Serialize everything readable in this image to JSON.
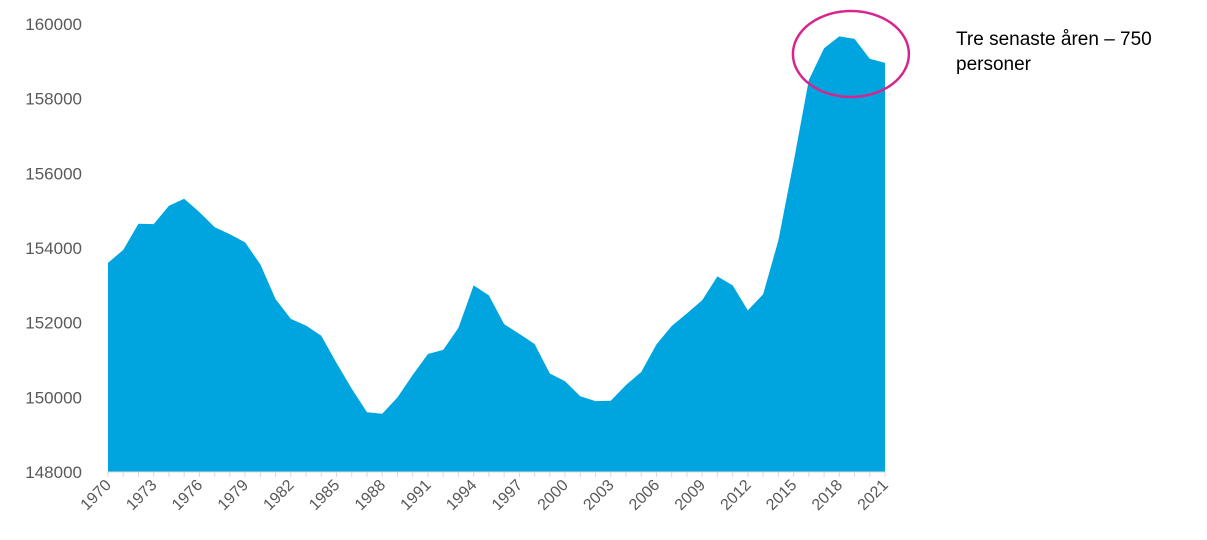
{
  "chart_data": {
    "type": "area",
    "x": [
      1970,
      1971,
      1972,
      1973,
      1974,
      1975,
      1976,
      1977,
      1978,
      1979,
      1980,
      1981,
      1982,
      1983,
      1984,
      1985,
      1986,
      1987,
      1988,
      1989,
      1990,
      1991,
      1992,
      1993,
      1994,
      1995,
      1996,
      1997,
      1998,
      1999,
      2000,
      2001,
      2002,
      2003,
      2004,
      2005,
      2006,
      2007,
      2008,
      2009,
      2010,
      2011,
      2012,
      2013,
      2014,
      2015,
      2016,
      2017,
      2018,
      2019,
      2020,
      2021
    ],
    "values": [
      153600,
      153950,
      154650,
      154640,
      155130,
      155320,
      154960,
      154560,
      154370,
      154150,
      153560,
      152630,
      152100,
      151920,
      151650,
      150920,
      150230,
      149600,
      149560,
      150000,
      150600,
      151160,
      151270,
      151860,
      153000,
      152730,
      151960,
      151700,
      151430,
      150640,
      150430,
      150030,
      149900,
      149910,
      150330,
      150680,
      151420,
      151910,
      152250,
      152600,
      153240,
      153000,
      152330,
      152760,
      154200,
      156300,
      158500,
      159350,
      159670,
      159600,
      159070,
      158960
    ],
    "xticks": [
      "1970",
      "1973",
      "1976",
      "1979",
      "1982",
      "1985",
      "1988",
      "1991",
      "1994",
      "1997",
      "2000",
      "2003",
      "2006",
      "2009",
      "2012",
      "2015",
      "2018",
      "2021"
    ],
    "yticks": [
      "148000",
      "150000",
      "152000",
      "154000",
      "156000",
      "158000",
      "160000"
    ],
    "ylim": [
      148000,
      160000
    ],
    "xlim": [
      1970,
      2021
    ],
    "grid": false,
    "legend": "none",
    "title": "",
    "xlabel": "",
    "ylabel": "",
    "annotation": {
      "text_line1": "Tre senaste åren – 750",
      "text_line2": "personer",
      "highlight_from": 2016,
      "highlight_to": 2021
    },
    "colors": {
      "fill": "#00A5E0",
      "circle": "#D6268D",
      "axis": "#D9D9D9",
      "tick_text": "#595959"
    }
  }
}
